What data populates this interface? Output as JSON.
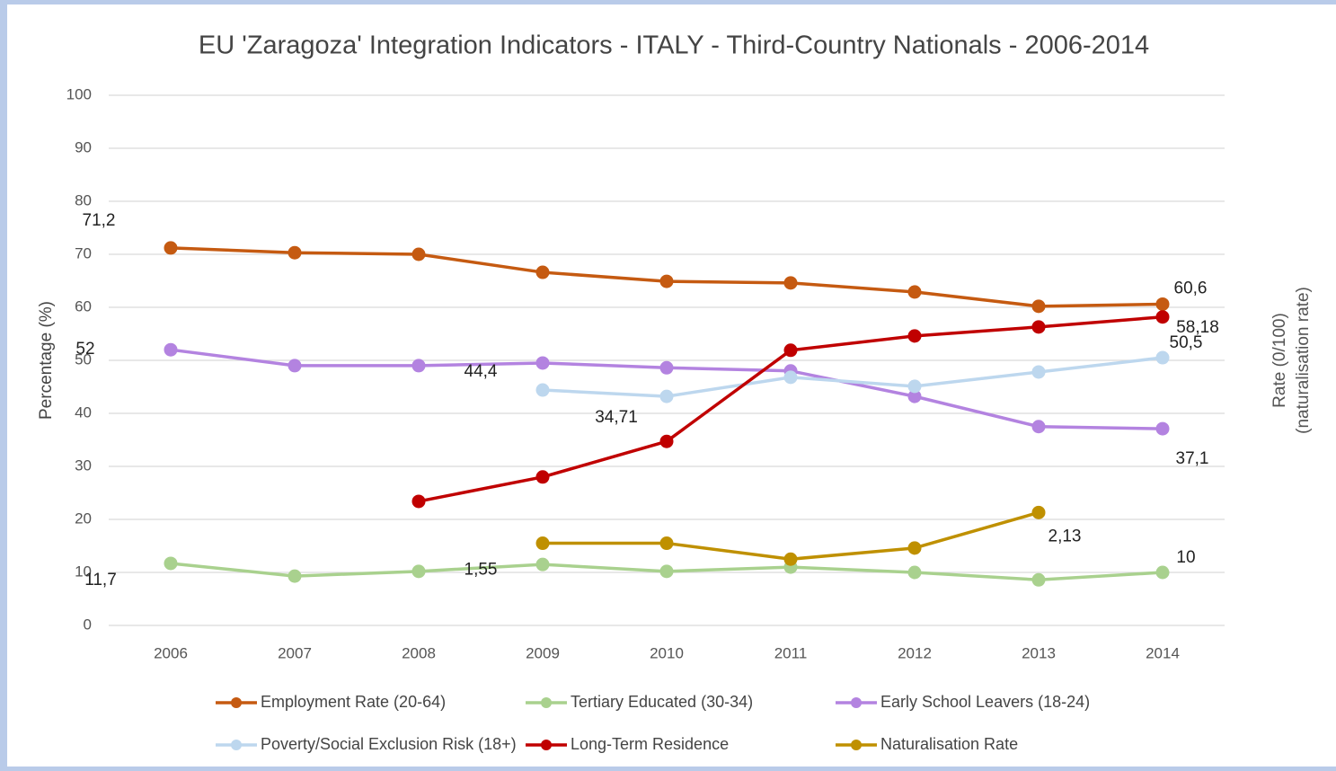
{
  "chart_data": {
    "type": "line",
    "title": "EU 'Zaragoza' Integration Indicators - ITALY - Third-Country Nationals - 2006-2014",
    "ylabel": "Percentage (%)",
    "y2label": [
      "Rate (0/100)",
      "(naturalisation rate)"
    ],
    "categories": [
      "2006",
      "2007",
      "2008",
      "2009",
      "2010",
      "2011",
      "2012",
      "2013",
      "2014"
    ],
    "ylim": [
      0,
      100
    ],
    "yticks": [
      0,
      10,
      20,
      30,
      40,
      50,
      60,
      70,
      80,
      90,
      100
    ],
    "y2lim": [
      0,
      10
    ],
    "grid": true,
    "legend": "bottom",
    "series": [
      {
        "name": "Employment Rate (20-64)",
        "color": "#c55a11",
        "values": [
          71.2,
          70.3,
          70.0,
          66.6,
          64.9,
          64.6,
          62.9,
          60.2,
          60.6
        ],
        "value_labels": [
          "71,2",
          null,
          null,
          null,
          null,
          null,
          null,
          null,
          "60,6"
        ]
      },
      {
        "name": "Tertiary Educated (30-34)",
        "color": "#a9d18e",
        "values": [
          11.7,
          9.3,
          10.2,
          11.5,
          10.2,
          11.0,
          10.0,
          8.6,
          10
        ],
        "value_labels": [
          "11,7",
          null,
          null,
          null,
          null,
          null,
          null,
          null,
          "10"
        ]
      },
      {
        "name": "Early School Leavers (18-24)",
        "color": "#b383e0",
        "values": [
          52,
          49.0,
          49.0,
          49.5,
          48.6,
          48.0,
          43.2,
          37.5,
          37.1
        ],
        "value_labels": [
          "52",
          null,
          null,
          null,
          null,
          null,
          null,
          null,
          "37,1"
        ]
      },
      {
        "name": "Poverty/Social Exclusion Risk (18+)",
        "color": "#bdd7ee",
        "values": [
          null,
          null,
          null,
          44.4,
          43.2,
          46.8,
          45.1,
          47.8,
          50.5
        ],
        "value_labels": [
          null,
          null,
          null,
          "44,4",
          null,
          null,
          null,
          null,
          "50,5"
        ]
      },
      {
        "name": "Long-Term Residence",
        "color": "#c00000",
        "values": [
          null,
          null,
          23.4,
          28.0,
          34.71,
          51.9,
          54.6,
          56.3,
          58.18
        ],
        "value_labels": [
          null,
          null,
          null,
          null,
          "34,71",
          null,
          null,
          null,
          "58,18"
        ]
      },
      {
        "name": "Naturalisation Rate",
        "color": "#bf9000",
        "axis": "y2",
        "values": [
          null,
          null,
          null,
          1.55,
          1.55,
          1.25,
          1.46,
          2.13,
          null
        ],
        "value_labels": [
          null,
          null,
          null,
          "1,55",
          null,
          null,
          null,
          "2,13",
          null
        ]
      }
    ]
  }
}
